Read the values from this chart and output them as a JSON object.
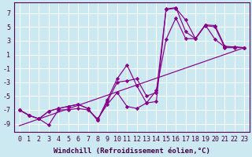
{
  "background_color": "#cce8f0",
  "grid_color": "#ffffff",
  "line_color": "#880088",
  "marker_color": "#880088",
  "xlabel": "Windchill (Refroidissement éolien,°C)",
  "xlabel_fontsize": 6.5,
  "tick_fontsize": 6.0,
  "xlim": [
    -0.5,
    23.5
  ],
  "ylim": [
    -10.2,
    8.5
  ],
  "yticks": [
    -9,
    -7,
    -5,
    -3,
    -1,
    1,
    3,
    5,
    7
  ],
  "xticks": [
    0,
    1,
    2,
    3,
    4,
    5,
    6,
    7,
    8,
    9,
    10,
    11,
    12,
    13,
    14,
    15,
    16,
    17,
    18,
    19,
    20,
    21,
    22,
    23
  ],
  "series1_x": [
    0,
    1,
    2,
    3,
    4,
    5,
    6,
    7,
    8,
    9,
    10,
    11,
    12,
    13,
    14,
    15,
    16,
    17,
    18,
    19,
    20,
    21,
    22,
    23
  ],
  "series1_y": [
    -7.0,
    -7.8,
    -8.3,
    -9.2,
    -7.0,
    -7.0,
    -6.8,
    -7.0,
    -8.3,
    -6.2,
    -4.5,
    -6.5,
    -6.8,
    -6.0,
    -5.8,
    7.5,
    7.7,
    6.0,
    3.3,
    5.2,
    5.0,
    2.0,
    2.0,
    2.0
  ],
  "series2_x": [
    0,
    1,
    2,
    3,
    4,
    5,
    6,
    7,
    8,
    9,
    10,
    11,
    12,
    13,
    14,
    15,
    16,
    17,
    18,
    19,
    20,
    21,
    22,
    23
  ],
  "series2_y": [
    -7.0,
    -7.8,
    -8.3,
    -7.2,
    -6.8,
    -6.5,
    -6.2,
    -6.8,
    -8.5,
    -5.8,
    -3.0,
    -2.8,
    -2.5,
    -5.0,
    -4.5,
    7.6,
    7.8,
    4.3,
    3.3,
    5.3,
    3.2,
    2.1,
    2.1,
    2.0
  ],
  "series3_x": [
    0,
    1,
    2,
    3,
    4,
    5,
    6,
    7,
    8,
    9,
    10,
    11,
    12,
    13,
    14,
    15,
    16,
    17,
    18,
    19,
    20,
    21,
    22,
    23
  ],
  "series3_y": [
    -7.0,
    -7.8,
    -8.3,
    -7.2,
    -6.8,
    -6.5,
    -6.2,
    -6.8,
    -8.5,
    -5.5,
    -2.5,
    -0.5,
    -3.5,
    -6.0,
    -4.2,
    3.2,
    6.3,
    3.3,
    3.3,
    5.3,
    5.2,
    2.2,
    2.1,
    2.0
  ],
  "regline_x": [
    0,
    23
  ],
  "regline_y": [
    -9.3,
    2.0
  ]
}
